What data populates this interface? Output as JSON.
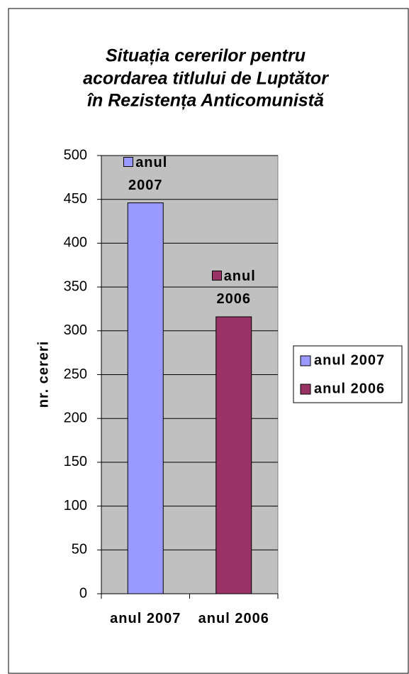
{
  "chart_data": {
    "type": "bar",
    "title": [
      "Situația cererilor pentru",
      "acordarea titlului de Luptător",
      "în Rezistența Anticomunistă"
    ],
    "ylabel": "nr. cereri",
    "categories": [
      "anul 2007",
      "anul 2006"
    ],
    "series": [
      {
        "name": "anul 2007",
        "color": "#9999ff",
        "values": [
          446,
          null
        ]
      },
      {
        "name": "anul 2006",
        "color": "#993366",
        "values": [
          null,
          316
        ]
      }
    ],
    "ylim": [
      0,
      500
    ],
    "yticks": [
      0,
      50,
      100,
      150,
      200,
      250,
      300,
      350,
      400,
      450,
      500
    ],
    "grid": true,
    "legend": "right",
    "data_labels": "series_name"
  }
}
